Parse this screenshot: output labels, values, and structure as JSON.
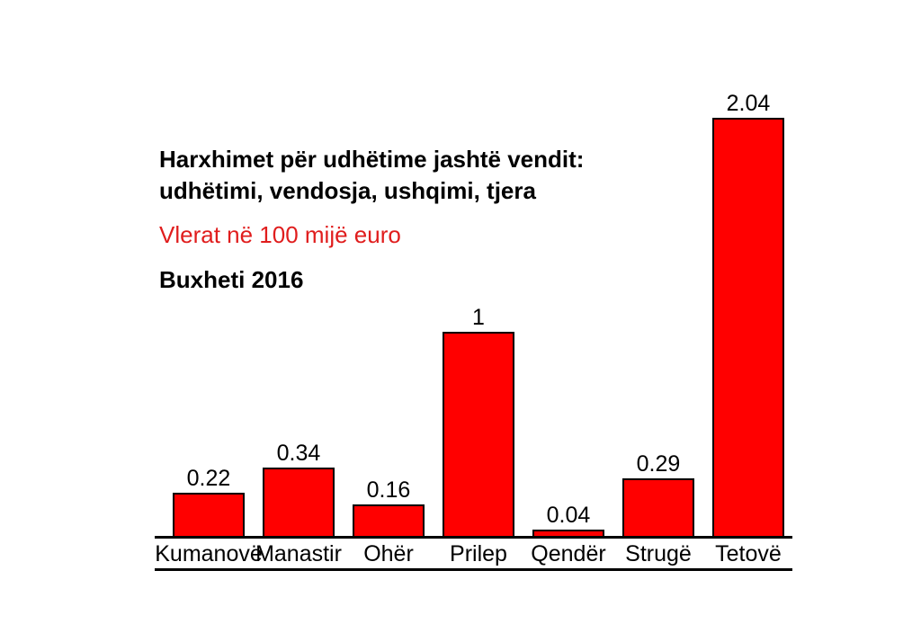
{
  "header": {
    "title_line1": "Harxhimet për udhëtime jashtë vendit:",
    "title_line2": "udhëtimi, vendosja, ushqimi, tjera",
    "subtitle": "Vlerat në 100 mijë euro",
    "period": "Buxheti 2016"
  },
  "colors": {
    "bar_fill": "#ff0000",
    "bar_border": "#000000",
    "subtitle_text": "#e01d1d",
    "axis": "#000000",
    "text": "#000000",
    "background": "#ffffff"
  },
  "chart_data": {
    "type": "bar",
    "title": "Harxhimet për udhëtime jashtë vendit: udhëtimi, vendosja, ushqimi, tjera",
    "subtitle": "Vlerat në 100 mijë euro",
    "period": "Buxheti 2016",
    "categories": [
      "Kumanovë",
      "Manastir",
      "Ohër",
      "Prilep",
      "Qendër",
      "Strugë",
      "Tetovë"
    ],
    "values": [
      0.22,
      0.34,
      0.16,
      1,
      0.04,
      0.29,
      2.04
    ],
    "value_labels": [
      "0.22",
      "0.34",
      "0.16",
      "1",
      "0.04",
      "0.29",
      "2.04"
    ],
    "unit": "100 mijë euro",
    "xlabel": "",
    "ylabel": "",
    "ylim": [
      0,
      2.2
    ],
    "grid": false,
    "legend": false,
    "bar_color": "#ff0000",
    "data_labels_shown": true
  }
}
